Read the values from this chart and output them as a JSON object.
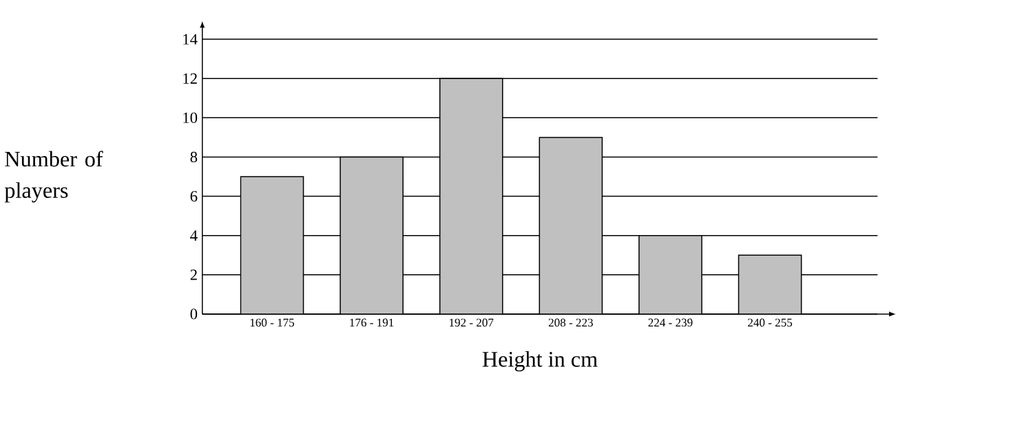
{
  "chart_data": {
    "type": "bar",
    "xlabel": "Height in cm",
    "ylabel": "Number of players",
    "categories": [
      "160 - 175",
      "176 - 191",
      "192 - 207",
      "208 - 223",
      "224 - 239",
      "240 - 255"
    ],
    "values": [
      7,
      8,
      12,
      9,
      4,
      3
    ],
    "color": "#c0c0c0",
    "ylim": [
      0,
      14
    ],
    "yticks": [
      0,
      2,
      4,
      6,
      8,
      10,
      12,
      14
    ],
    "grid": "y"
  }
}
